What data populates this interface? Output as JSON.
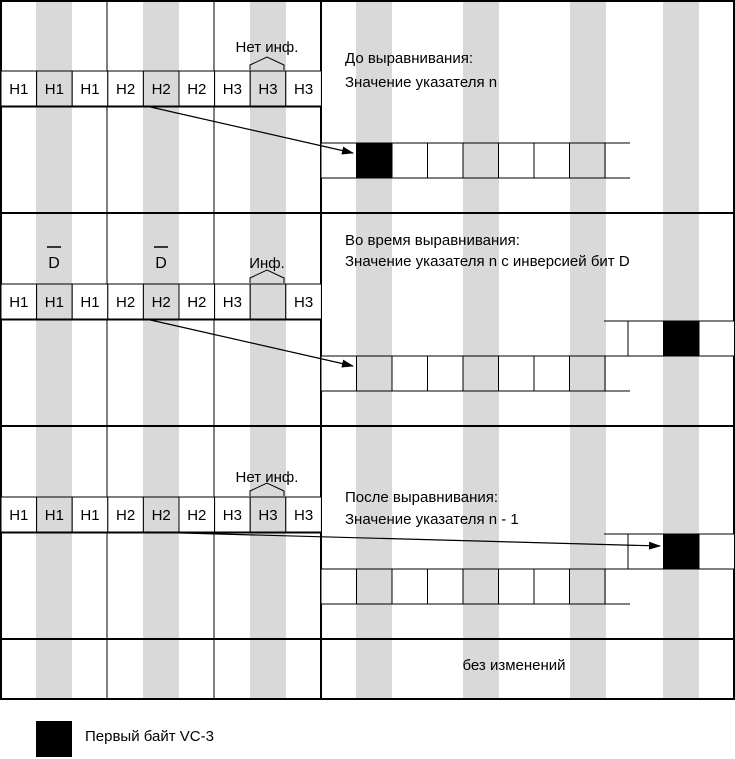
{
  "colors": {
    "stripe": "#d9d9d9",
    "vc3": "#000000",
    "line": "#000000"
  },
  "header_row_labels": [
    "H1",
    "H1",
    "H1",
    "H2",
    "H2",
    "H2",
    "H3",
    "H3",
    "H3"
  ],
  "panels": [
    {
      "phase": "before",
      "note": "Нет инф.",
      "text_line1": "До выравнивания:",
      "text_line2": "Значение указателя n"
    },
    {
      "phase": "during",
      "note": "Инф.",
      "d_bar_label": "D",
      "text_line1": "Во время выравнивания:",
      "text_line2": "Значение указателя n с инверсией бит D"
    },
    {
      "phase": "after",
      "note": "Нет инф.",
      "text_line1": "После выравнивания:",
      "text_line2": "Значение указателя n - 1"
    },
    {
      "phase": "unchanged",
      "text_line1": "без изменений"
    }
  ],
  "legend": {
    "label": "Первый байт VC-3"
  }
}
